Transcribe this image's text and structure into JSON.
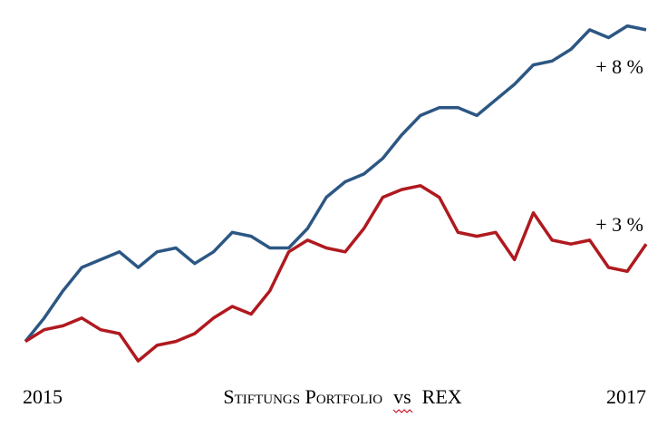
{
  "chart_data": {
    "type": "line",
    "categories": [
      "2015",
      null,
      null,
      null,
      null,
      null,
      null,
      null,
      null,
      null,
      null,
      null,
      null,
      null,
      null,
      null,
      null,
      null,
      null,
      null,
      null,
      null,
      null,
      null,
      null,
      null,
      null,
      null,
      null,
      null,
      null,
      null,
      null,
      "2017"
    ],
    "series": [
      {
        "name": "Stiftungs Portfolio",
        "color": "#2c5784",
        "values": [
          0,
          0.6,
          1.3,
          1.9,
          2.1,
          2.3,
          1.9,
          2.3,
          2.4,
          2.0,
          2.3,
          2.8,
          2.7,
          2.4,
          2.4,
          2.9,
          3.7,
          4.1,
          4.3,
          4.7,
          5.3,
          5.8,
          6.0,
          6.0,
          5.8,
          6.2,
          6.6,
          7.1,
          7.2,
          7.5,
          8.0,
          7.8,
          8.1,
          8.0
        ]
      },
      {
        "name": "REX",
        "color": "#b0191f",
        "values": [
          0,
          0.3,
          0.4,
          0.6,
          0.3,
          0.2,
          -0.5,
          -0.1,
          0,
          0.2,
          0.6,
          0.9,
          0.7,
          1.3,
          2.3,
          2.6,
          2.4,
          2.3,
          2.9,
          3.7,
          3.9,
          4.0,
          3.7,
          2.8,
          2.7,
          2.8,
          2.1,
          3.3,
          2.6,
          2.5,
          2.6,
          1.9,
          1.8,
          2.5
        ]
      }
    ],
    "legend_separator": "vs",
    "annotations": [
      "+ 8 %",
      "+ 3 %"
    ],
    "ylim": [
      -0.8,
      8.3
    ],
    "grid": false
  }
}
